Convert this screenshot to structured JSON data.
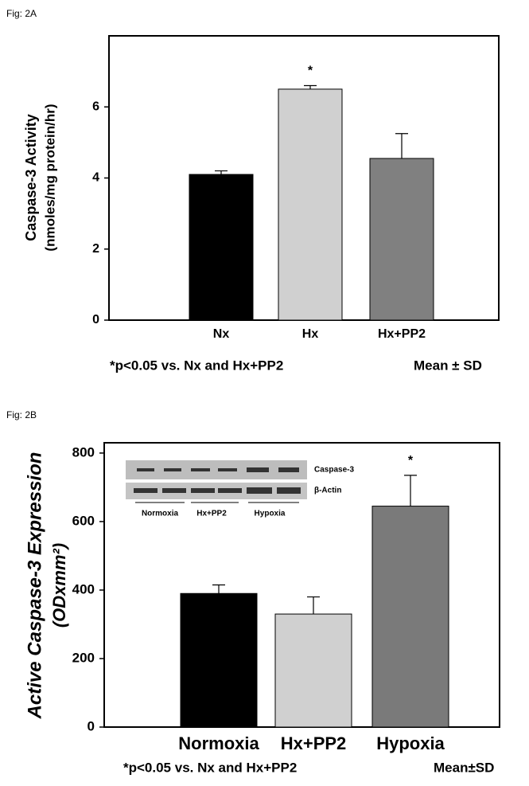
{
  "figure_labels": [
    "Fig: 2A",
    "Fig: 2B"
  ],
  "chart_data": [
    {
      "type": "bar",
      "ylabel": [
        "Caspase-3 Activity",
        "(nmoles/mg protein/hr)"
      ],
      "categories": [
        "Nx",
        "Hx",
        "Hx+PP2"
      ],
      "values": [
        4.1,
        6.5,
        4.55
      ],
      "errors": [
        0.1,
        0.1,
        0.7
      ],
      "colors": [
        "#000000",
        "#d0d0d0",
        "#808080"
      ],
      "ylim": [
        0,
        8
      ],
      "yticks": [
        0,
        2,
        4,
        6
      ],
      "annotations": [
        {
          "text": "*",
          "x": "Hx"
        }
      ],
      "footnotes": [
        "*p<0.05 vs. Nx and Hx+PP2",
        "Mean ± SD"
      ]
    },
    {
      "type": "bar",
      "ylabel": [
        "Active Caspase-3 Expression",
        "(ODxmm²)"
      ],
      "categories": [
        "Normoxia",
        "Hx+PP2",
        "Hypoxia"
      ],
      "values": [
        390,
        330,
        645
      ],
      "errors": [
        25,
        50,
        90
      ],
      "colors": [
        "#000000",
        "#d0d0d0",
        "#7a7a7a"
      ],
      "ylim": [
        0,
        830
      ],
      "yticks": [
        0,
        200,
        400,
        600,
        800
      ],
      "annotations": [
        {
          "text": "*",
          "x": "Hypoxia"
        }
      ],
      "inset": {
        "rows": [
          "Caspase-3",
          "β-Actin"
        ],
        "groups": [
          "Normoxia",
          "Hx+PP2",
          "Hypoxia"
        ]
      },
      "footnotes": [
        "*p<0.05 vs. Nx and Hx+PP2",
        "Mean±SD"
      ]
    }
  ]
}
